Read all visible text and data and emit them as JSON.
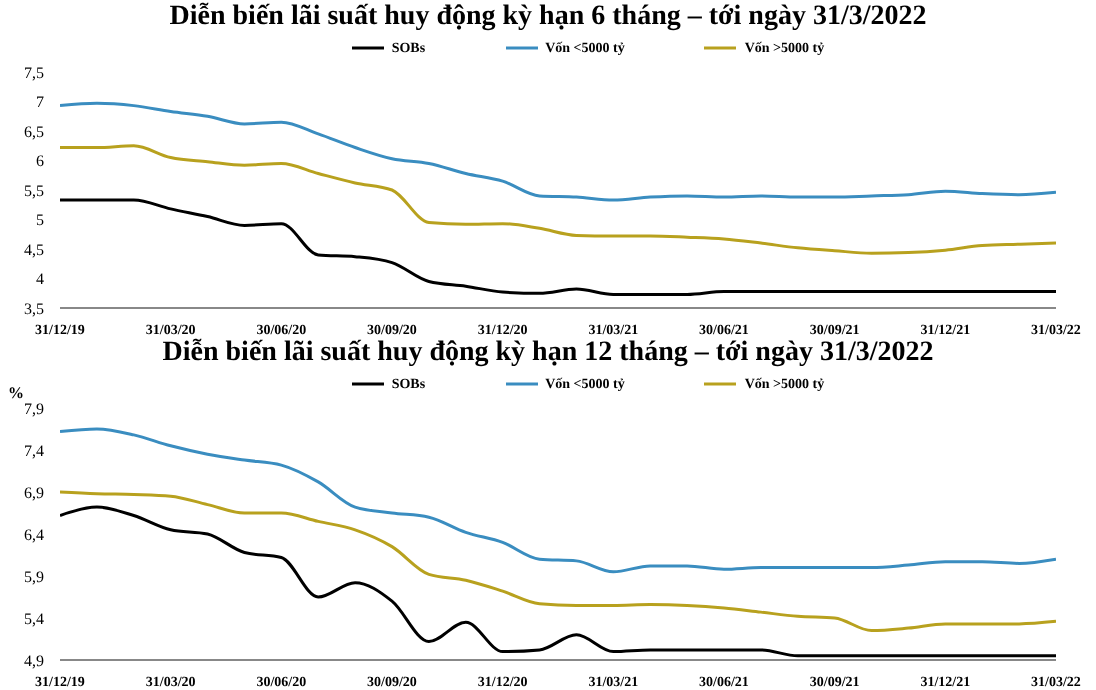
{
  "chart_data": [
    {
      "type": "line",
      "title": "Diễn biến lãi suất huy động kỳ hạn 6 tháng – tới ngày 31/3/2022",
      "categories": [
        "31/12/19",
        null,
        null,
        "31/03/20",
        null,
        null,
        "30/06/20",
        null,
        null,
        "30/09/20",
        null,
        null,
        "31/12/20",
        null,
        null,
        "31/03/21",
        null,
        null,
        "30/06/21",
        null,
        null,
        "30/09/21",
        null,
        null,
        "31/12/21",
        null,
        null,
        "31/03/22"
      ],
      "series": [
        {
          "name": "SOBs",
          "color": "#000000",
          "values": [
            5.33,
            5.33,
            5.33,
            5.18,
            5.05,
            4.9,
            4.93,
            4.4,
            4.37,
            4.27,
            3.95,
            3.87,
            3.77,
            3.75,
            3.82,
            3.73,
            3.73,
            3.73,
            3.78,
            3.78,
            3.78,
            3.78,
            3.78,
            3.78,
            3.78,
            3.78,
            3.78,
            3.78
          ]
        },
        {
          "name": "Vốn <5000 tỷ",
          "color": "#3a8dc0",
          "values": [
            6.93,
            6.97,
            6.93,
            6.83,
            6.75,
            6.62,
            6.65,
            6.45,
            6.22,
            6.03,
            5.95,
            5.78,
            5.65,
            5.4,
            5.38,
            5.33,
            5.38,
            5.4,
            5.38,
            5.4,
            5.38,
            5.38,
            5.4,
            5.42,
            5.48,
            5.44,
            5.42,
            5.46
          ]
        },
        {
          "name": "Vốn >5000 tỷ",
          "color": "#b8a11e",
          "values": [
            6.22,
            6.22,
            6.25,
            6.05,
            5.98,
            5.92,
            5.95,
            5.78,
            5.62,
            5.5,
            4.95,
            4.92,
            4.93,
            4.85,
            4.73,
            4.72,
            4.72,
            4.7,
            4.67,
            4.6,
            4.52,
            4.47,
            4.43,
            4.44,
            4.48,
            4.56,
            4.58,
            4.6
          ]
        }
      ],
      "ylim": [
        3.5,
        7.5
      ],
      "yticks": [
        {
          "value": 3.5,
          "label": "3,5"
        },
        4,
        {
          "value": 4.5,
          "label": "4,5"
        },
        5,
        {
          "value": 5.5,
          "label": "5,5"
        },
        6,
        {
          "value": 6.5,
          "label": "6,5"
        },
        7,
        {
          "value": 7.5,
          "label": "7,5"
        }
      ],
      "grid": false,
      "legend": "top",
      "marker": "none",
      "line_style": "solid"
    },
    {
      "type": "line",
      "title": "Diễn biến lãi suất huy động kỳ hạn 12 tháng – tới ngày 31/3/2022",
      "ylabel": "%",
      "categories": [
        "31/12/19",
        null,
        null,
        "31/03/20",
        null,
        null,
        "30/06/20",
        null,
        null,
        "30/09/20",
        null,
        null,
        "31/12/20",
        null,
        null,
        "31/03/21",
        null,
        null,
        "30/06/21",
        null,
        null,
        "30/09/21",
        null,
        null,
        "31/12/21",
        null,
        null,
        "31/03/22"
      ],
      "series": [
        {
          "name": "SOBs",
          "color": "#000000",
          "values": [
            6.62,
            6.72,
            6.62,
            6.45,
            6.4,
            6.18,
            6.12,
            5.65,
            5.82,
            5.6,
            5.12,
            5.35,
            5.0,
            5.02,
            5.2,
            5.0,
            5.02,
            5.02,
            5.02,
            5.02,
            4.95,
            4.95,
            4.95,
            4.95,
            4.95,
            4.95,
            4.95,
            4.95
          ]
        },
        {
          "name": "Vốn <5000 tỷ",
          "color": "#3a8dc0",
          "values": [
            7.62,
            7.65,
            7.58,
            7.45,
            7.35,
            7.28,
            7.22,
            7.02,
            6.72,
            6.65,
            6.6,
            6.42,
            6.3,
            6.1,
            6.08,
            5.95,
            6.02,
            6.02,
            5.98,
            6.0,
            6.0,
            6.0,
            6.0,
            6.03,
            6.07,
            6.07,
            6.05,
            6.1
          ]
        },
        {
          "name": "Vốn >5000 tỷ",
          "color": "#b8a11e",
          "values": [
            6.9,
            6.88,
            6.87,
            6.85,
            6.75,
            6.65,
            6.65,
            6.55,
            6.45,
            6.25,
            5.92,
            5.85,
            5.72,
            5.57,
            5.55,
            5.55,
            5.56,
            5.55,
            5.52,
            5.47,
            5.42,
            5.4,
            5.25,
            5.28,
            5.33,
            5.33,
            5.33,
            5.36
          ]
        }
      ],
      "ylim": [
        4.9,
        7.9
      ],
      "yticks": [
        {
          "value": 4.9,
          "label": "4,9"
        },
        {
          "value": 5.4,
          "label": "5,4"
        },
        {
          "value": 5.9,
          "label": "5,9"
        },
        {
          "value": 6.4,
          "label": "6,4"
        },
        {
          "value": 6.9,
          "label": "6,9"
        },
        {
          "value": 7.4,
          "label": "7,4"
        },
        {
          "value": 7.9,
          "label": "7,9"
        }
      ],
      "grid": false,
      "legend": "top",
      "marker": "none",
      "line_style": "solid"
    }
  ]
}
